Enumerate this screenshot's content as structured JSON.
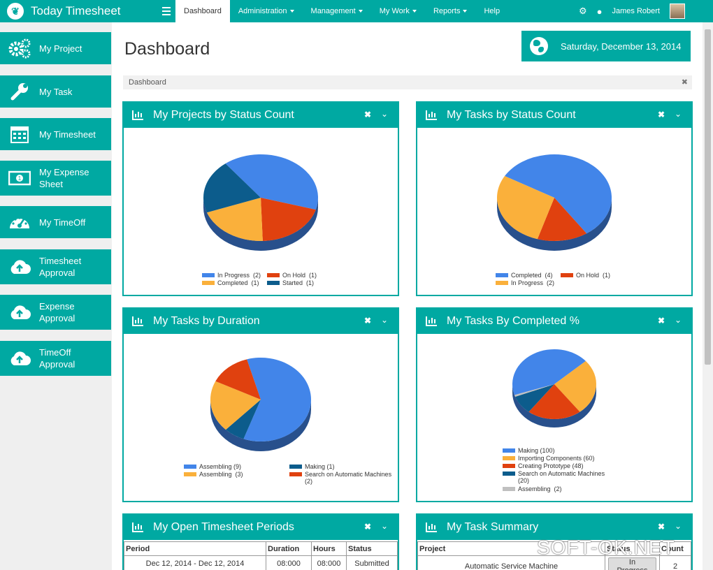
{
  "app": {
    "title": "Today Timesheet",
    "logo_icon": "leaf-icon"
  },
  "nav": {
    "items": [
      {
        "label": "Dashboard",
        "active": true,
        "dropdown": false
      },
      {
        "label": "Administration",
        "active": false,
        "dropdown": true
      },
      {
        "label": "Management",
        "active": false,
        "dropdown": true
      },
      {
        "label": "My Work",
        "active": false,
        "dropdown": true
      },
      {
        "label": "Reports",
        "active": false,
        "dropdown": true
      },
      {
        "label": "Help",
        "active": false,
        "dropdown": false
      }
    ],
    "user_name": "James Robert",
    "gear_icon": "⚙",
    "drop_icon": "💧"
  },
  "sidebar": {
    "items": [
      {
        "label": "My Project",
        "icon": "gears-icon"
      },
      {
        "label": "My Task",
        "icon": "wrench-icon"
      },
      {
        "label": "My Timesheet",
        "icon": "calendar-icon"
      },
      {
        "label": "My Expense Sheet",
        "icon": "money-icon"
      },
      {
        "label": "My TimeOff",
        "icon": "dashboard-icon"
      },
      {
        "label": "Timesheet Approval",
        "icon": "cloud-upload-icon"
      },
      {
        "label": "Expense Approval",
        "icon": "cloud-upload-icon"
      },
      {
        "label": "TimeOff Approval",
        "icon": "cloud-upload-icon"
      }
    ]
  },
  "page": {
    "title": "Dashboard",
    "date": "Saturday, December 13, 2014",
    "breadcrumb": "Dashboard",
    "close_glyph": "✖"
  },
  "colors": {
    "accent": "#00a9a2",
    "blue": "#4285e9",
    "orange": "#fab03b",
    "red": "#e0410f",
    "navy": "#0c5c8c",
    "gray": "#c0c0c0"
  },
  "panels": {
    "projects_status": {
      "title": "My Projects by Status Count"
    },
    "tasks_status": {
      "title": "My Tasks by Status Count"
    },
    "tasks_duration": {
      "title": "My Tasks by Duration"
    },
    "tasks_completed": {
      "title": "My Tasks By Completed %"
    },
    "timesheet_periods": {
      "title": "My Open Timesheet Periods"
    },
    "task_summary": {
      "title": "My Task Summary"
    }
  },
  "chart_data": [
    {
      "type": "pie",
      "title": "My Projects by Status Count",
      "slices": [
        {
          "label": "In Progress",
          "value": 2,
          "color": "#4285e9"
        },
        {
          "label": "On Hold",
          "value": 1,
          "color": "#e0410f"
        },
        {
          "label": "Completed",
          "value": 1,
          "color": "#fab03b"
        },
        {
          "label": "Started",
          "value": 1,
          "color": "#0c5c8c"
        }
      ]
    },
    {
      "type": "pie",
      "title": "My Tasks by Status Count",
      "slices": [
        {
          "label": "Completed",
          "value": 4,
          "color": "#4285e9"
        },
        {
          "label": "On Hold",
          "value": 1,
          "color": "#e0410f"
        },
        {
          "label": "In Progress",
          "value": 2,
          "color": "#fab03b"
        }
      ]
    },
    {
      "type": "pie",
      "title": "My Tasks by Duration",
      "slices": [
        {
          "label": "Assembling",
          "value": 9,
          "color": "#4285e9"
        },
        {
          "label": "Making",
          "value": 1,
          "color": "#0c5c8c"
        },
        {
          "label": "Assembling",
          "value": 3,
          "color": "#fab03b"
        },
        {
          "label": "Search on Automatic Machines",
          "value": 2,
          "color": "#e0410f"
        }
      ]
    },
    {
      "type": "pie",
      "title": "My Tasks By Completed %",
      "slices": [
        {
          "label": "Making",
          "value": 100,
          "color": "#4285e9"
        },
        {
          "label": "Importing Components",
          "value": 60,
          "color": "#fab03b"
        },
        {
          "label": "Creating Prototype",
          "value": 48,
          "color": "#e0410f"
        },
        {
          "label": "Search on Automatic Machines",
          "value": 20,
          "color": "#0c5c8c"
        },
        {
          "label": "Assembling",
          "value": 2,
          "color": "#c0c0c0"
        }
      ]
    }
  ],
  "legends": {
    "projects_status": [
      {
        "text": "In Progress  (2)",
        "color": "#4285e9"
      },
      {
        "text": "On Hold  (1)",
        "color": "#e0410f"
      },
      {
        "text": "Completed  (1)",
        "color": "#fab03b"
      },
      {
        "text": "Started  (1)",
        "color": "#0c5c8c"
      }
    ],
    "tasks_status": [
      {
        "text": "Completed  (4)",
        "color": "#4285e9"
      },
      {
        "text": "On Hold  (1)",
        "color": "#e0410f"
      },
      {
        "text": "In Progress  (2)",
        "color": "#fab03b"
      }
    ],
    "tasks_duration": [
      {
        "text": "Assembling (9)",
        "color": "#4285e9"
      },
      {
        "text": "Making (1)",
        "color": "#0c5c8c"
      },
      {
        "text": "Assembling  (3)",
        "color": "#fab03b"
      },
      {
        "text": "Search on Automatic Machines\n(2)",
        "color": "#e0410f"
      }
    ],
    "tasks_completed": [
      {
        "text": "Making (100)",
        "color": "#4285e9"
      },
      {
        "text": "Importing Components (60)",
        "color": "#fab03b"
      },
      {
        "text": "Creating Prototype (48)",
        "color": "#e0410f"
      },
      {
        "text": "Search on Automatic Machines\n(20)",
        "color": "#0c5c8c"
      },
      {
        "text": "Assembling  (2)",
        "color": "#c0c0c0"
      }
    ]
  },
  "timesheet_table": {
    "headers": [
      "Period",
      "Duration",
      "Hours",
      "Status"
    ],
    "rows": [
      [
        "Dec 12, 2014 - Dec 12, 2014",
        "08:000",
        "08:000",
        "Submitted"
      ]
    ]
  },
  "summary_table": {
    "headers": [
      "Project",
      "Status",
      "Count"
    ],
    "rows": [
      [
        "Automatic Service Machine",
        "In Progress",
        "2"
      ]
    ]
  },
  "watermark": "SOFT-OK.NET"
}
